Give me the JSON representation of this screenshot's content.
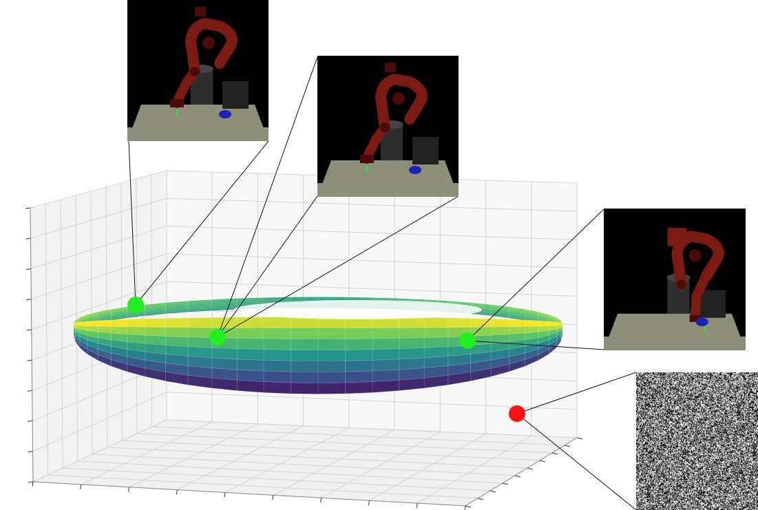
{
  "figure": {
    "manifold_colormap": [
      "#440154",
      "#3b528b",
      "#21918c",
      "#5ec962",
      "#fde725"
    ],
    "pane_color": "#f2f2f2",
    "grid_color": "#d4d4d4",
    "point_valid_color": "#22ee22",
    "point_invalid_color": "#ff1111",
    "points": [
      {
        "id": "p1",
        "kind": "valid",
        "icon": "green-dot"
      },
      {
        "id": "p2",
        "kind": "valid",
        "icon": "green-dot"
      },
      {
        "id": "p3",
        "kind": "valid",
        "icon": "green-dot"
      },
      {
        "id": "p4",
        "kind": "invalid",
        "icon": "red-dot"
      }
    ],
    "insets": [
      {
        "id": "robot-view-1",
        "content": "robot-arm-render",
        "icon": "robot-arm"
      },
      {
        "id": "robot-view-2",
        "content": "robot-arm-render",
        "icon": "robot-arm"
      },
      {
        "id": "robot-view-3",
        "content": "robot-arm-render",
        "icon": "robot-arm"
      },
      {
        "id": "noise-view",
        "content": "random-noise",
        "icon": "noise-image"
      }
    ],
    "scene_colors": {
      "background": "#000000",
      "table": "#8e8f78",
      "robot": "#7a1a12",
      "robot_dark": "#4a0c08",
      "pedestal": "#2e2e2e",
      "block": "#222222",
      "puck": "#1c22b8",
      "gripper_tip": "#33dd33"
    }
  }
}
